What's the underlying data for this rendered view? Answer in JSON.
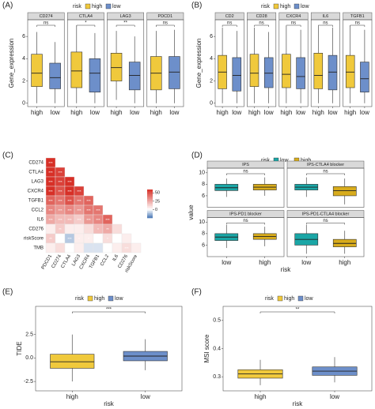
{
  "chart_data": [
    {
      "type": "box",
      "panel": "(A)",
      "legend_title": "risk",
      "series": [
        {
          "name": "high",
          "color": "#f0c93c"
        },
        {
          "name": "low",
          "color": "#6d8fca"
        }
      ],
      "categories": [
        "high",
        "low"
      ],
      "ylabel": "Gene_expression",
      "ylim": [
        -0.3,
        7.5
      ],
      "yticks": [
        0,
        2,
        4,
        6
      ],
      "facets": [
        {
          "title": "CD274",
          "signif": "ns",
          "values": [
            [
              0,
              1.5,
              2.7,
              4.4,
              6.4
            ],
            [
              0,
              1.3,
              2.3,
              3.6,
              5.5
            ]
          ]
        },
        {
          "title": "CTLA4",
          "signif": "*",
          "values": [
            [
              0,
              1.4,
              2.9,
              4.6,
              7.0
            ],
            [
              0,
              1.0,
              2.7,
              4.0,
              6.3
            ]
          ]
        },
        {
          "title": "LAG3",
          "signif": "**",
          "values": [
            [
              0.3,
              2.0,
              3.2,
              4.5,
              6.5
            ],
            [
              0,
              1.2,
              2.5,
              3.7,
              6.0
            ]
          ]
        },
        {
          "title": "PDCD1",
          "signif": "ns",
          "values": [
            [
              0,
              1.2,
              2.7,
              4.2,
              6.5
            ],
            [
              0,
              1.3,
              2.8,
              4.2,
              6.6
            ]
          ]
        }
      ]
    },
    {
      "type": "box",
      "panel": "(B)",
      "legend_title": "risk",
      "series": [
        {
          "name": "high",
          "color": "#f0c93c"
        },
        {
          "name": "low",
          "color": "#6d8fca"
        }
      ],
      "categories": [
        "high",
        "low"
      ],
      "ylabel": "Gene_expression",
      "ylim": [
        -0.3,
        7.5
      ],
      "yticks": [
        0,
        2,
        4,
        6
      ],
      "facets": [
        {
          "title": "CD2",
          "signif": "ns",
          "values": [
            [
              0,
              1.3,
              2.8,
              4.3,
              6.8
            ],
            [
              0,
              1.1,
              2.5,
              4.1,
              6.5
            ]
          ]
        },
        {
          "title": "CD28",
          "signif": "ns",
          "values": [
            [
              0,
              1.5,
              2.7,
              4.4,
              6.8
            ],
            [
              0,
              1.4,
              2.7,
              4.1,
              6.4
            ]
          ]
        },
        {
          "title": "CXCR4",
          "signif": "ns",
          "values": [
            [
              0,
              1.4,
              2.6,
              4.4,
              6.9
            ],
            [
              0,
              1.3,
              2.4,
              4.1,
              6.6
            ]
          ]
        },
        {
          "title": "IL6",
          "signif": "ns",
          "values": [
            [
              0,
              1.3,
              2.5,
              4.5,
              6.9
            ],
            [
              0,
              1.2,
              2.8,
              4.3,
              6.8
            ]
          ]
        },
        {
          "title": "TGFB1",
          "signif": "ns",
          "values": [
            [
              0,
              1.4,
              2.8,
              4.3,
              7.0
            ],
            [
              0,
              1.0,
              2.2,
              3.7,
              6.6
            ]
          ]
        }
      ]
    },
    {
      "type": "heatmap",
      "panel": "(C)",
      "rows": [
        "CD274",
        "CTLA4",
        "LAG3",
        "CXCR4",
        "TGFB1",
        "CCL2",
        "IL6",
        "CD276",
        "riskScore",
        "TMB"
      ],
      "columns": [
        "PDCD1",
        "CD274",
        "CTLA4",
        "LAG3",
        "CXCR4",
        "TGFB1",
        "CCL2",
        "IL6",
        "CD276",
        "riskScore"
      ],
      "values": [
        [
          60
        ],
        [
          65,
          55
        ],
        [
          70,
          55,
          60
        ],
        [
          65,
          50,
          60,
          55
        ],
        [
          45,
          40,
          50,
          40,
          45
        ],
        [
          35,
          30,
          35,
          30,
          40,
          40
        ],
        [
          25,
          20,
          20,
          15,
          30,
          35,
          45
        ],
        [
          5,
          15,
          5,
          5,
          10,
          20,
          25,
          10
        ],
        [
          15,
          0,
          -10,
          5,
          5,
          0,
          10,
          0,
          5
        ],
        [
          5,
          10,
          0,
          5,
          -5,
          -5,
          0,
          5,
          10,
          5
        ]
      ],
      "labels": [
        [
          "***"
        ],
        [
          "***",
          "***"
        ],
        [
          "***",
          "***",
          "***"
        ],
        [
          "***",
          "***",
          "***",
          "***"
        ],
        [
          "***",
          "***",
          "***",
          "***",
          "***"
        ],
        [
          "***",
          "***",
          "***",
          "***",
          "***",
          "***"
        ],
        [
          "***",
          "***",
          "***",
          "***",
          "***",
          "***",
          "***"
        ],
        [
          null,
          "**",
          null,
          null,
          null,
          "*",
          "**",
          null
        ],
        [
          "**",
          null,
          "***",
          "*",
          "*",
          null,
          "*",
          null,
          null
        ],
        [
          null,
          null,
          null,
          null,
          null,
          null,
          null,
          null,
          "***",
          null
        ]
      ],
      "colors": [
        "#4575b4",
        "#ffffff",
        "#d73027"
      ],
      "clim": [
        -25,
        60
      ],
      "cticks": [
        0,
        25,
        50
      ]
    },
    {
      "type": "box",
      "panel": "(D)",
      "legend_title": "risk",
      "series": [
        {
          "name": "low",
          "color": "#1aa6a6"
        },
        {
          "name": "high",
          "color": "#d8ac1c"
        }
      ],
      "categories": [
        "low",
        "high"
      ],
      "ylabel": "value",
      "xlabel": "risk",
      "ylim": [
        4,
        10.8
      ],
      "yticks": [
        6,
        8,
        10
      ],
      "facets": [
        {
          "title": "IPS",
          "signif": "ns",
          "values": [
            [
              5.8,
              6.9,
              7.4,
              8.0,
              9.0
            ],
            [
              6.0,
              7.0,
              7.5,
              8.0,
              9.2
            ]
          ]
        },
        {
          "title": "IPS-CTLA4 blocker",
          "signif": "ns",
          "values": [
            [
              5.8,
              7.0,
              7.5,
              8.0,
              9.2
            ],
            [
              4.5,
              6.0,
              6.9,
              7.6,
              9.0
            ]
          ]
        },
        {
          "title": "IPS-PD1 blocker",
          "signif": "ns",
          "values": [
            [
              5.5,
              6.8,
              7.4,
              8.0,
              9.5
            ],
            [
              5.8,
              7.0,
              7.5,
              8.0,
              9.2
            ]
          ]
        },
        {
          "title": "IPS-PD1-CTLA4 blocker",
          "signif": "ns",
          "values": [
            [
              4.5,
              6.0,
              7.0,
              8.0,
              9.5
            ],
            [
              4.5,
              5.7,
              6.3,
              7.0,
              8.5
            ]
          ]
        }
      ]
    },
    {
      "type": "box",
      "panel": "(E)",
      "legend_title": "risk",
      "series": [
        {
          "name": "high",
          "color": "#f0c93c"
        },
        {
          "name": "low",
          "color": "#6d8fca"
        }
      ],
      "categories": [
        "high",
        "low"
      ],
      "ylabel": "TIDE",
      "xlabel": "risk",
      "ylim": [
        -3.5,
        5.5
      ],
      "yticks": [
        -2.5,
        {
          "value": 0,
          "label": "0.0"
        },
        2.5
      ],
      "facets": [
        {
          "signif": "***",
          "values": [
            [
              -2.5,
              -1.1,
              -0.4,
              0.4,
              2.5
            ],
            [
              -1.3,
              -0.3,
              0.2,
              0.7,
              2.0
            ]
          ]
        }
      ]
    },
    {
      "type": "box",
      "panel": "(F)",
      "legend_title": "risk",
      "series": [
        {
          "name": "high",
          "color": "#f0c93c"
        },
        {
          "name": "low",
          "color": "#6d8fca"
        }
      ],
      "categories": [
        "high",
        "low"
      ],
      "ylabel": "MSI score",
      "xlabel": "risk",
      "ylim": [
        0.25,
        0.55
      ],
      "yticks": [
        0.3,
        0.4,
        0.5
      ],
      "facets": [
        {
          "signif": "**",
          "values": [
            [
              0.27,
              0.295,
              0.31,
              0.325,
              0.36
            ],
            [
              0.28,
              0.305,
              0.32,
              0.335,
              0.37
            ]
          ]
        }
      ]
    }
  ]
}
